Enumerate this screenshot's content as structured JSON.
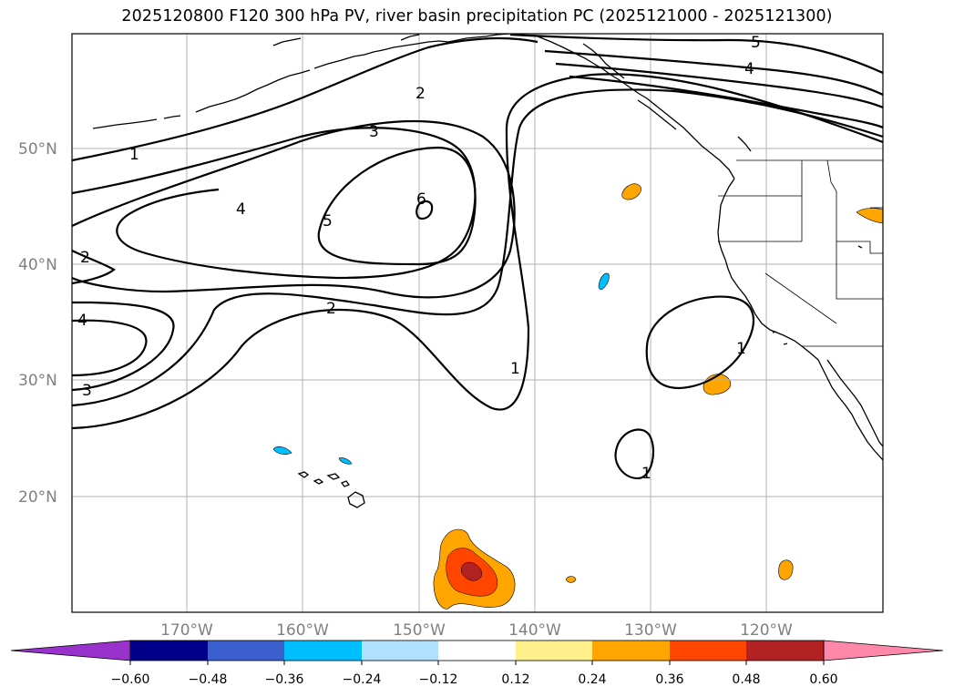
{
  "title": "2025120800 F120 300 hPa PV, river basin precipitation PC (2025121000 - 2025121300)",
  "lat_labels": [
    "20°N",
    "30°N",
    "40°N",
    "50°N"
  ],
  "lon_labels": [
    "170°W",
    "160°W",
    "150°W",
    "140°W",
    "130°W",
    "120°W"
  ],
  "pv_contour_labels": [
    {
      "id": "pv-1-a",
      "text": "1"
    },
    {
      "id": "pv-1-b",
      "text": "1"
    },
    {
      "id": "pv-1-c",
      "text": "1"
    },
    {
      "id": "pv-1-d",
      "text": "1"
    },
    {
      "id": "pv-2-a",
      "text": "2"
    },
    {
      "id": "pv-2-b",
      "text": "2"
    },
    {
      "id": "pv-2-c",
      "text": "2"
    },
    {
      "id": "pv-3-a",
      "text": "3"
    },
    {
      "id": "pv-3-b",
      "text": "3"
    },
    {
      "id": "pv-4-a",
      "text": "4"
    },
    {
      "id": "pv-4-b",
      "text": "4"
    },
    {
      "id": "pv-4-c",
      "text": "4"
    },
    {
      "id": "pv-5-a",
      "text": "5"
    },
    {
      "id": "pv-5-b",
      "text": "5"
    },
    {
      "id": "pv-6-a",
      "text": "6"
    }
  ],
  "colorbar": {
    "ticks": [
      "−0.60",
      "−0.48",
      "−0.36",
      "−0.24",
      "−0.12",
      "0.12",
      "0.24",
      "0.36",
      "0.48",
      "0.60"
    ],
    "colors": [
      "#9932cc",
      "#00008b",
      "#3a5fcd",
      "#00bfff",
      "#b0e2ff",
      "#ffffff",
      "#fff08c",
      "#ffa500",
      "#ff4500",
      "#b22222",
      "#ff88aa"
    ]
  },
  "precip_colors": {
    "light_orange": "#ffa500",
    "red_orange": "#ff4500",
    "dark_red": "#b22222",
    "light_blue": "#00bfff"
  }
}
